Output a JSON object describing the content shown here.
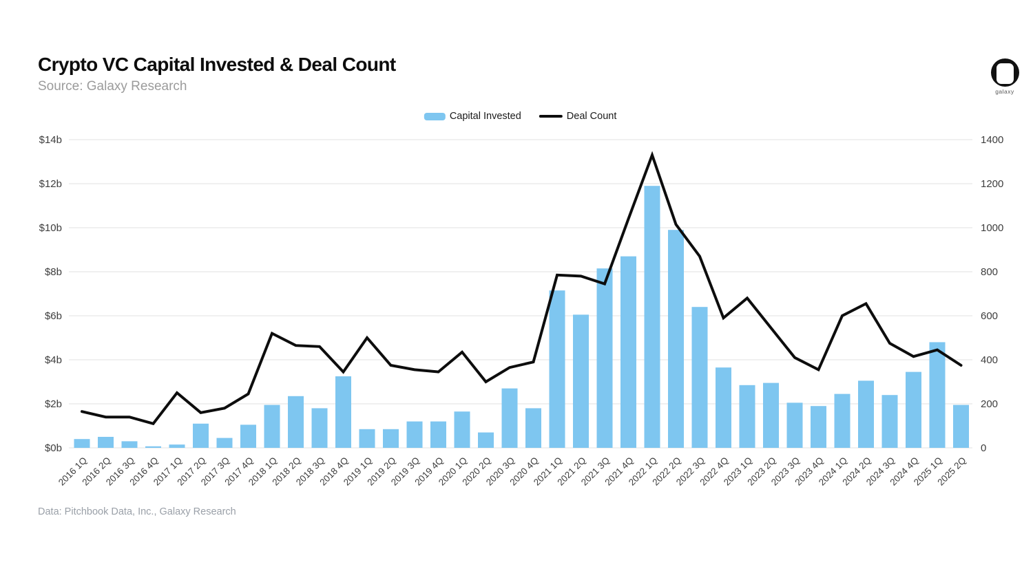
{
  "header": {
    "title": "Crypto VC Capital Invested & Deal Count",
    "subtitle": "Source: Galaxy Research",
    "logo_text": "galaxy"
  },
  "legend": {
    "capital_label": "Capital Invested",
    "deal_label": "Deal Count"
  },
  "footer": {
    "source_note": "Data: Pitchbook Data, Inc., Galaxy Research"
  },
  "colors": {
    "bar": "#7EC6F0",
    "line": "#0d0d0d",
    "gridline": "#e7e7e7",
    "axis_text": "#3d3d3d",
    "subtitle_text": "#9b9b9b",
    "footer_text": "#9aa0a8"
  },
  "chart_data": {
    "type": "bar",
    "subtype": "combo-bar-line",
    "title": "Crypto VC Capital Invested & Deal Count",
    "grid": "horizontal",
    "legend_position": "top-center",
    "categories": [
      "2016 1Q",
      "2016 2Q",
      "2016 3Q",
      "2016 4Q",
      "2017 1Q",
      "2017 2Q",
      "2017 3Q",
      "2017 4Q",
      "2018 1Q",
      "2018 2Q",
      "2018 3Q",
      "2018 4Q",
      "2019 1Q",
      "2019 2Q",
      "2019 3Q",
      "2019 4Q",
      "2020 1Q",
      "2020 2Q",
      "2020 3Q",
      "2020 4Q",
      "2021 1Q",
      "2021 2Q",
      "2021 3Q",
      "2021 4Q",
      "2022 1Q",
      "2022 2Q",
      "2022 3Q",
      "2022 4Q",
      "2023 1Q",
      "2023 2Q",
      "2023 3Q",
      "2023 4Q",
      "2024 1Q",
      "2024 2Q",
      "2024 3Q",
      "2024 4Q",
      "2025 1Q",
      "2025 2Q"
    ],
    "series": [
      {
        "name": "Capital Invested",
        "type": "bar",
        "axis": "left",
        "unit": "$ billions",
        "color": "#7EC6F0",
        "values": [
          0.4,
          0.5,
          0.3,
          0.07,
          0.15,
          1.1,
          0.45,
          1.05,
          1.95,
          2.35,
          1.8,
          3.25,
          0.85,
          0.85,
          1.2,
          1.2,
          1.65,
          0.7,
          2.7,
          1.8,
          7.15,
          6.05,
          8.15,
          8.7,
          11.9,
          9.9,
          6.4,
          3.65,
          2.85,
          2.95,
          2.05,
          1.9,
          2.45,
          3.05,
          2.4,
          3.45,
          4.8,
          1.95
        ]
      },
      {
        "name": "Deal Count",
        "type": "line",
        "axis": "right",
        "unit": "deals",
        "color": "#0d0d0d",
        "values": [
          165,
          140,
          140,
          110,
          250,
          160,
          180,
          245,
          520,
          465,
          460,
          345,
          500,
          375,
          355,
          345,
          435,
          300,
          365,
          390,
          785,
          780,
          745,
          1040,
          1330,
          1015,
          870,
          590,
          680,
          545,
          410,
          355,
          600,
          655,
          475,
          415,
          445,
          375
        ]
      }
    ],
    "left_axis": {
      "min": 0,
      "max": 14,
      "tick_labels": [
        "$0b",
        "$2b",
        "$4b",
        "$6b",
        "$8b",
        "$10b",
        "$12b",
        "$14b"
      ]
    },
    "right_axis": {
      "min": 0,
      "max": 1400,
      "tick_labels": [
        "0",
        "200",
        "400",
        "600",
        "800",
        "1000",
        "1200",
        "1400"
      ]
    }
  }
}
